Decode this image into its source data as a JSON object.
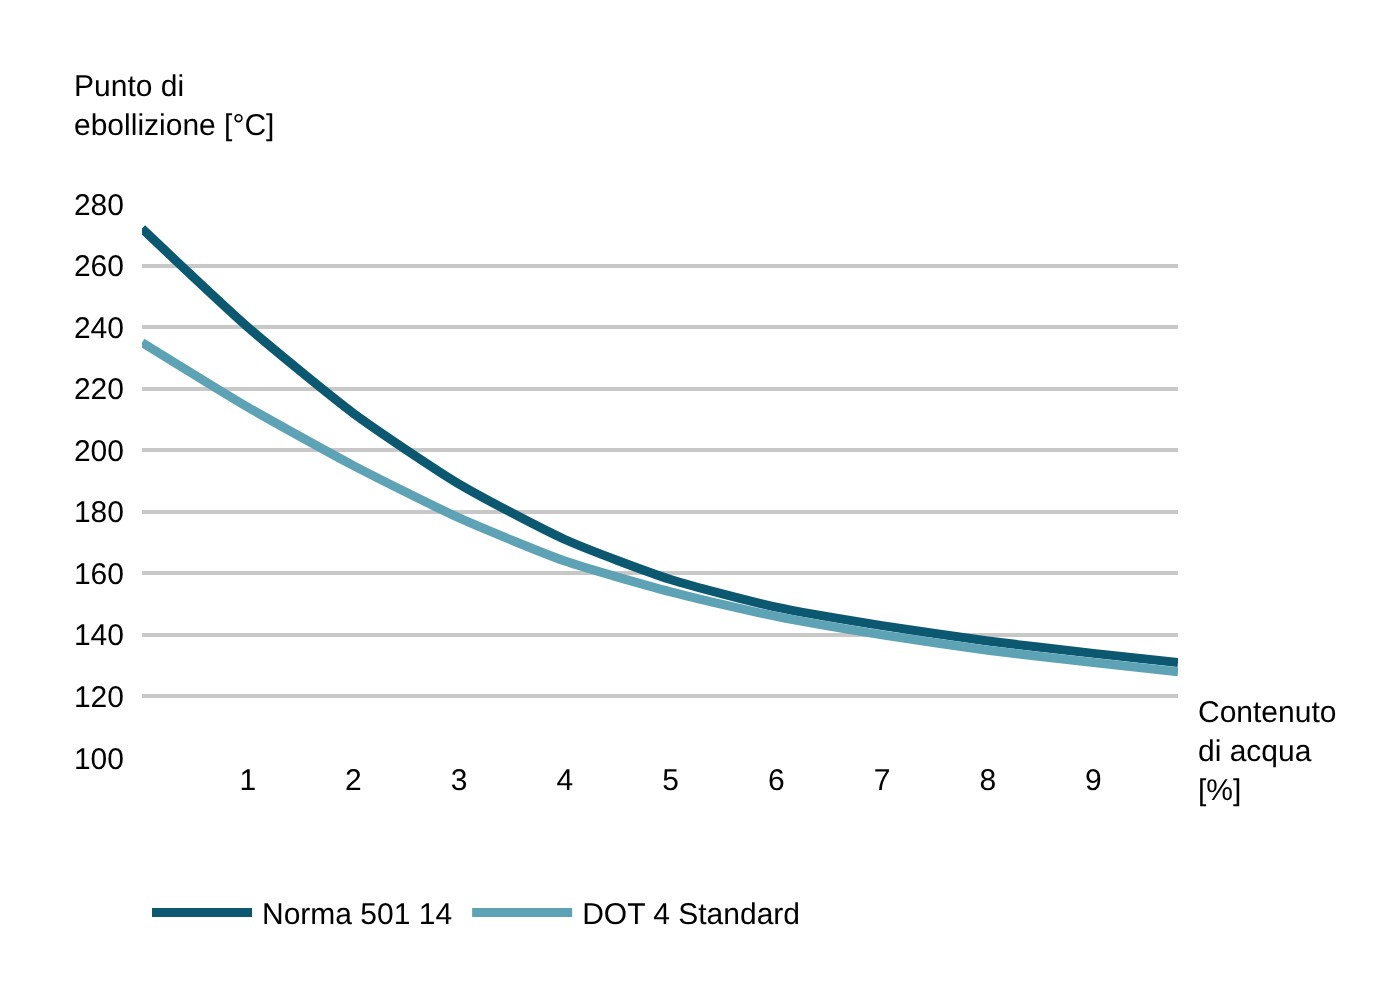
{
  "chart_data": {
    "type": "line",
    "xlabel": "Contenuto\ndi acqua\n[%]",
    "ylabel": "Punto di\nebollizione [°C]",
    "x": [
      0,
      1,
      2,
      3,
      4,
      5,
      6,
      7,
      8,
      9,
      9.8
    ],
    "series": [
      {
        "name": "Norma 501 14",
        "color": "#0b5870",
        "values": [
          272,
          240,
          212,
          189,
          171,
          158,
          149,
          143,
          138,
          134,
          131
        ]
      },
      {
        "name": "DOT 4 Standard",
        "color": "#5ea3b5",
        "values": [
          235,
          214,
          195,
          178,
          164,
          154,
          146,
          140,
          135,
          131,
          128
        ]
      }
    ],
    "xlim": [
      0,
      9.8
    ],
    "xticks": [
      1,
      2,
      3,
      4,
      5,
      6,
      7,
      8,
      9
    ],
    "ylim": [
      100,
      280
    ],
    "yticks": [
      100,
      120,
      140,
      160,
      180,
      200,
      220,
      240,
      260,
      280
    ],
    "grid": "y",
    "legend": "bottom",
    "marker": "none",
    "line_style": "solid"
  }
}
